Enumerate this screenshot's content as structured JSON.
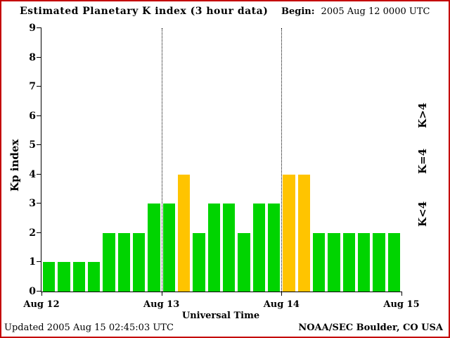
{
  "header": {
    "title": "Estimated Planetary K index (3 hour data)",
    "begin_label": "Begin:",
    "begin_value": "2005 Aug 12 0000 UTC"
  },
  "footer": {
    "updated": "Updated 2005 Aug 15 02:45:03 UTC",
    "credit": "NOAA/SEC Boulder, CO USA"
  },
  "frame_color": "#c40000",
  "chart_data": {
    "type": "bar",
    "title": "Estimated Planetary K index (3 hour data)",
    "xlabel": "Universal Time",
    "ylabel": "Kp index",
    "ylim": [
      0,
      9
    ],
    "yticks": [
      0,
      1,
      2,
      3,
      4,
      5,
      6,
      7,
      8,
      9
    ],
    "xtick_labels": [
      "Aug 12",
      "Aug 13",
      "Aug 14",
      "Aug 15"
    ],
    "bar_interval_hours": 3,
    "begin_utc": "2005 Aug 12 0000 UTC",
    "values": [
      1,
      1,
      1,
      1,
      2,
      2,
      2,
      3,
      3,
      4,
      2,
      3,
      3,
      2,
      3,
      3,
      4,
      4,
      2,
      2,
      2,
      2,
      2,
      2
    ],
    "day_boundary_slots": [
      8,
      16
    ],
    "grid": "dotted vertical lines at day boundaries",
    "colors": {
      "low": "#00d400",
      "mid": "#ffc400",
      "high": "#ff0000"
    },
    "color_rule": "value<4 green, value=4 yellow, value>4 red",
    "legend": [
      {
        "label": "K>4",
        "color": "#ff0000"
      },
      {
        "label": "K=4",
        "color": "#ffc400"
      },
      {
        "label": "K<4",
        "color": "#00d400"
      }
    ],
    "legend_position": "right, rotated vertical"
  }
}
